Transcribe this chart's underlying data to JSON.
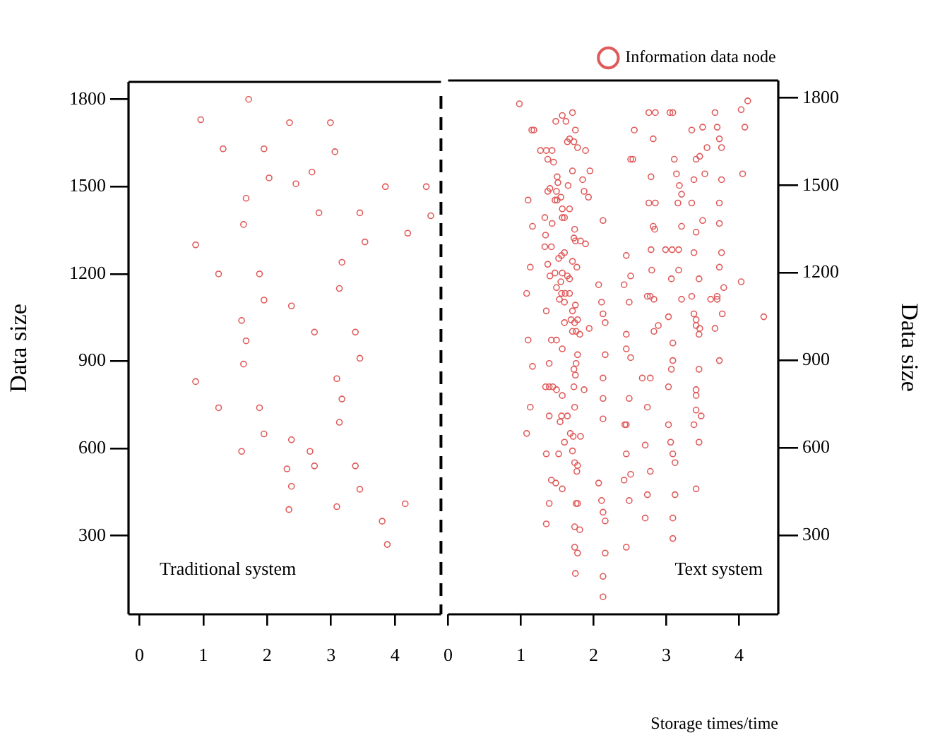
{
  "chart_data": [
    {
      "type": "scatter",
      "ylabel": "Data size",
      "xlim": [
        -0.17,
        4.72
      ],
      "xticks": [
        0,
        1,
        2,
        3,
        4
      ],
      "ylim": [
        30,
        1860
      ],
      "yticks": [
        300,
        600,
        900,
        1200,
        1500,
        1800
      ],
      "grid": false,
      "marker": "circle",
      "annotations": [
        "Traditional system"
      ],
      "series": [
        {
          "color": "#e05a5a",
          "x": [
            0.96,
            1.71,
            2.35,
            2.99,
            1.31,
            1.95,
            3.06,
            2.7,
            2.03,
            2.45,
            3.85,
            4.49,
            1.67,
            2.81,
            3.45,
            4.56,
            1.63,
            4.2,
            0.88,
            3.53,
            3.17,
            1.24,
            1.88,
            3.13,
            1.95,
            2.38,
            1.6,
            2.74,
            3.38,
            1.67,
            1.63,
            3.45,
            0.88,
            3.09,
            3.17,
            1.24,
            1.88,
            3.13,
            1.95,
            2.38,
            1.6,
            2.67,
            2.31,
            2.74,
            3.38,
            2.38,
            3.45,
            2.34,
            3.09,
            4.16,
            3.8,
            3.88
          ],
          "values": [
            1730,
            1800,
            1720,
            1720,
            1630,
            1630,
            1620,
            1550,
            1530,
            1510,
            1500,
            1500,
            1460,
            1410,
            1410,
            1400,
            1370,
            1340,
            1300,
            1310,
            1240,
            1200,
            1200,
            1150,
            1110,
            1090,
            1040,
            1000,
            1000,
            970,
            890,
            910,
            830,
            840,
            770,
            740,
            740,
            690,
            650,
            630,
            590,
            590,
            530,
            540,
            540,
            470,
            460,
            390,
            400,
            410,
            350,
            270
          ]
        }
      ]
    },
    {
      "type": "scatter",
      "xlabel": "Storage times/time",
      "y2label": "Data size",
      "xlim": [
        0,
        4.54
      ],
      "xticks": [
        0,
        1,
        2,
        3,
        4
      ],
      "y2lim": [
        30,
        1860
      ],
      "y2ticks": [
        300,
        600,
        900,
        1200,
        1500,
        1800
      ],
      "grid": false,
      "marker": "circle",
      "legend": "top right",
      "annotations": [
        "Text system"
      ],
      "series": [
        {
          "name": "Information data node",
          "color": "#e05a5a",
          "axis": "y2",
          "x": [
            0.98,
            1.71,
            1.57,
            1.62,
            1.48,
            1.15,
            1.18,
            1.75,
            1.67,
            1.64,
            1.73,
            1.78,
            1.27,
            1.35,
            1.43,
            1.89,
            1.37,
            1.45,
            1.95,
            1.71,
            1.5,
            1.85,
            1.51,
            1.65,
            1.4,
            1.37,
            1.49,
            1.87,
            1.47,
            1.93,
            1.55,
            1.1,
            1.5,
            1.67,
            1.57,
            1.33,
            1.57,
            1.6,
            1.43,
            2.13,
            1.16,
            1.74,
            1.34,
            1.73,
            1.75,
            1.82,
            1.89,
            1.33,
            1.42,
            1.6,
            1.56,
            1.52,
            1.71,
            1.13,
            1.37,
            1.77,
            1.47,
            1.57,
            1.64,
            1.4,
            1.67,
            1.55,
            1.49,
            2.07,
            1.56,
            1.61,
            1.67,
            1.53,
            1.08,
            1.6,
            1.75,
            2.11,
            1.71,
            1.35,
            2.13,
            1.69,
            1.78,
            1.6,
            1.74,
            2.16,
            1.94,
            1.71,
            1.76,
            1.81,
            1.1,
            1.42,
            1.49,
            1.57,
            1.78,
            2.16,
            1.76,
            1.39,
            1.73,
            1.16,
            1.75,
            2.13,
            1.34,
            1.39,
            1.44,
            1.49,
            1.57,
            1.73,
            1.87,
            2.13,
            1.13,
            1.74,
            1.39,
            1.56,
            1.64,
            1.54,
            2.13,
            1.08,
            1.68,
            1.72,
            1.82,
            1.6,
            1.35,
            1.52,
            1.71,
            1.74,
            1.78,
            1.77,
            1.42,
            1.48,
            1.57,
            2.07,
            1.39,
            1.76,
            1.78,
            2.11,
            2.13,
            1.35,
            1.74,
            1.81,
            2.16,
            1.74,
            1.78,
            2.16,
            1.75,
            2.13,
            2.13,
            2.76,
            2.85,
            3.05,
            3.09,
            3.67,
            4.03,
            4.12,
            2.56,
            3.35,
            3.5,
            3.7,
            4.08,
            2.82,
            3.73,
            2.51,
            2.54,
            3.11,
            3.41,
            3.46,
            3.56,
            3.76,
            2.79,
            3.14,
            3.38,
            3.53,
            3.76,
            4.05,
            3.18,
            3.21,
            2.76,
            2.85,
            3.16,
            3.35,
            3.73,
            2.82,
            2.84,
            3.21,
            3.41,
            3.5,
            3.73,
            2.79,
            2.99,
            3.08,
            3.17,
            3.38,
            3.76,
            2.45,
            2.51,
            2.42,
            2.8,
            3.17,
            3.07,
            3.45,
            3.73,
            4.03,
            3.79,
            2.74,
            2.78,
            2.83,
            3.21,
            3.35,
            3.61,
            3.7,
            3.7,
            2.49,
            3.03,
            3.38,
            3.41,
            3.77,
            4.34,
            2.89,
            2.83,
            3.41,
            3.46,
            3.67,
            3.45,
            2.45,
            3.09,
            2.45,
            2.51,
            3.09,
            3.07,
            3.45,
            3.73,
            2.67,
            2.78,
            3.03,
            3.41,
            3.41,
            2.49,
            2.74,
            3.41,
            3.48,
            3.38,
            2.43,
            2.45,
            3.03,
            2.71,
            3.06,
            3.45,
            2.45,
            3.09,
            3.12,
            2.78,
            2.51,
            2.42,
            3.41,
            2.49,
            2.74,
            3.12,
            2.71,
            3.09,
            3.09,
            2.45
          ],
          "values": [
            1780,
            1750,
            1740,
            1720,
            1720,
            1690,
            1690,
            1690,
            1660,
            1650,
            1650,
            1630,
            1620,
            1620,
            1620,
            1620,
            1590,
            1580,
            1550,
            1550,
            1530,
            1520,
            1510,
            1500,
            1490,
            1480,
            1480,
            1480,
            1450,
            1460,
            1460,
            1450,
            1450,
            1420,
            1420,
            1390,
            1390,
            1390,
            1370,
            1380,
            1360,
            1350,
            1330,
            1320,
            1310,
            1310,
            1300,
            1290,
            1290,
            1270,
            1260,
            1250,
            1240,
            1220,
            1230,
            1220,
            1200,
            1200,
            1190,
            1190,
            1180,
            1170,
            1150,
            1160,
            1130,
            1130,
            1130,
            1110,
            1130,
            1100,
            1090,
            1100,
            1070,
            1070,
            1060,
            1040,
            1040,
            1030,
            1030,
            1030,
            1010,
            1000,
            1000,
            990,
            970,
            970,
            970,
            940,
            920,
            920,
            890,
            890,
            870,
            880,
            850,
            840,
            810,
            810,
            810,
            800,
            780,
            810,
            800,
            770,
            740,
            740,
            710,
            710,
            710,
            690,
            700,
            650,
            650,
            640,
            640,
            620,
            580,
            580,
            590,
            550,
            540,
            520,
            490,
            480,
            460,
            480,
            410,
            410,
            410,
            420,
            380,
            340,
            330,
            320,
            350,
            260,
            240,
            240,
            170,
            160,
            90,
            1750,
            1750,
            1750,
            1750,
            1750,
            1760,
            1790,
            1690,
            1690,
            1700,
            1700,
            1700,
            1660,
            1660,
            1590,
            1590,
            1590,
            1590,
            1600,
            1630,
            1630,
            1530,
            1540,
            1520,
            1540,
            1520,
            1540,
            1500,
            1470,
            1440,
            1440,
            1440,
            1440,
            1440,
            1360,
            1350,
            1360,
            1340,
            1380,
            1370,
            1280,
            1280,
            1280,
            1280,
            1270,
            1270,
            1260,
            1190,
            1160,
            1210,
            1210,
            1180,
            1180,
            1220,
            1170,
            1150,
            1120,
            1120,
            1110,
            1110,
            1120,
            1110,
            1120,
            1110,
            1100,
            1050,
            1060,
            1040,
            1060,
            1050,
            1020,
            1000,
            1020,
            1010,
            1010,
            990,
            990,
            960,
            940,
            910,
            900,
            870,
            870,
            900,
            840,
            840,
            810,
            800,
            780,
            770,
            740,
            730,
            710,
            680,
            680,
            680,
            680,
            610,
            620,
            620,
            580,
            580,
            550,
            520,
            510,
            490,
            460,
            420,
            440,
            440,
            360,
            360,
            290,
            260
          ]
        }
      ]
    }
  ]
}
